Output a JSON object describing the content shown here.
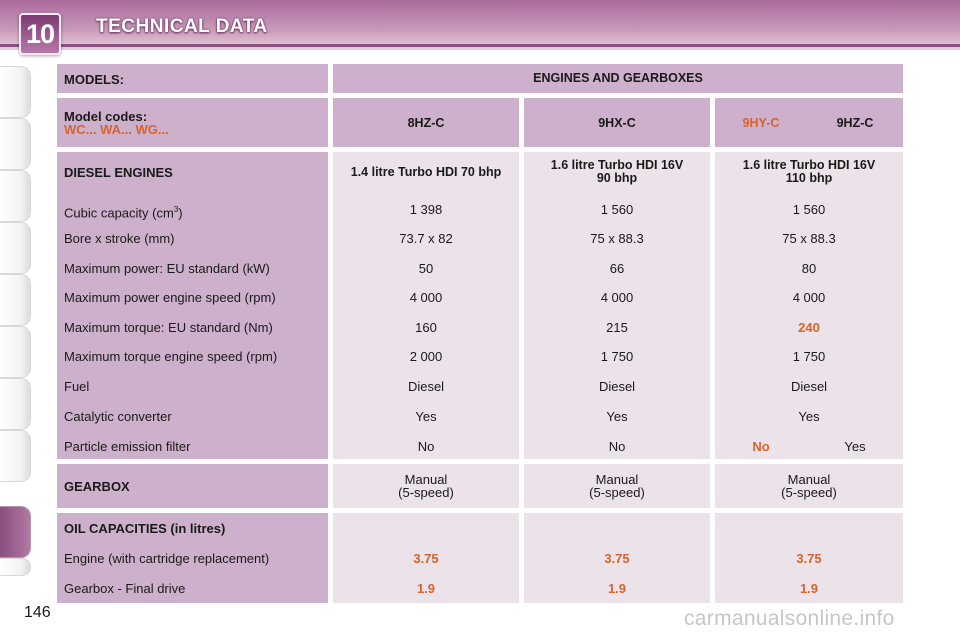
{
  "header": {
    "chapter_number": "10",
    "title": "TECHNICAL DATA"
  },
  "table": {
    "models_label": "MODELS:",
    "engines_heading": "ENGINES AND GEARBOXES",
    "model_codes_label": "Model codes:",
    "model_codes_prefixes": "WC... WA... WG...",
    "codes": [
      "8HZ-C",
      "9HX-C",
      "9HY-C",
      "9HZ-C"
    ],
    "diesel_label": "DIESEL ENGINES",
    "engines": [
      {
        "line1": "1.4 litre Turbo HDI 70 bhp",
        "line2": ""
      },
      {
        "line1": "1.6 litre Turbo HDI 16V",
        "line2": "90 bhp"
      },
      {
        "line1": "1.6 litre Turbo HDI 16V",
        "line2": "110 bhp"
      }
    ],
    "specs": [
      {
        "label": "Cubic capacity (cm",
        "sup": "3",
        "label_end": ")",
        "values": [
          "1 398",
          "1 560",
          "1 560"
        ]
      },
      {
        "label": "Bore x stroke (mm)",
        "values": [
          "73.7 x 82",
          "75 x 88.3",
          "75 x 88.3"
        ]
      },
      {
        "label": "Maximum power: EU standard (kW)",
        "values": [
          "50",
          "66",
          "80"
        ]
      },
      {
        "label": "Maximum power engine speed (rpm)",
        "values": [
          "4 000",
          "4 000",
          "4 000"
        ]
      },
      {
        "label": "Maximum torque: EU standard (Nm)",
        "values": [
          "160",
          "215",
          "240"
        ]
      },
      {
        "label": "Maximum torque engine speed (rpm)",
        "values": [
          "2 000",
          "1 750",
          "1 750"
        ]
      },
      {
        "label": "Fuel",
        "values": [
          "Diesel",
          "Diesel",
          "Diesel"
        ]
      },
      {
        "label": "Catalytic converter",
        "values": [
          "Yes",
          "Yes",
          "Yes"
        ]
      },
      {
        "label": "Particle emission filter",
        "values": [
          "No",
          "No",
          "No",
          "Yes"
        ]
      }
    ],
    "gearbox_label": "GEARBOX",
    "gearbox_line1": "Manual",
    "gearbox_line2": "(5-speed)",
    "oil_label": "OIL CAPACITIES (in litres)",
    "oil_rows": [
      {
        "label": "Engine (with cartridge replacement)",
        "values": [
          "3.75",
          "3.75",
          "3.75"
        ]
      },
      {
        "label": "Gearbox - Final drive",
        "values": [
          "1.9",
          "1.9",
          "1.9"
        ]
      }
    ]
  },
  "page_number": "146",
  "watermark": "carmanualsonline.info",
  "colors": {
    "accent_orange": "#d9632a",
    "header_purple": "#a96b9c"
  }
}
